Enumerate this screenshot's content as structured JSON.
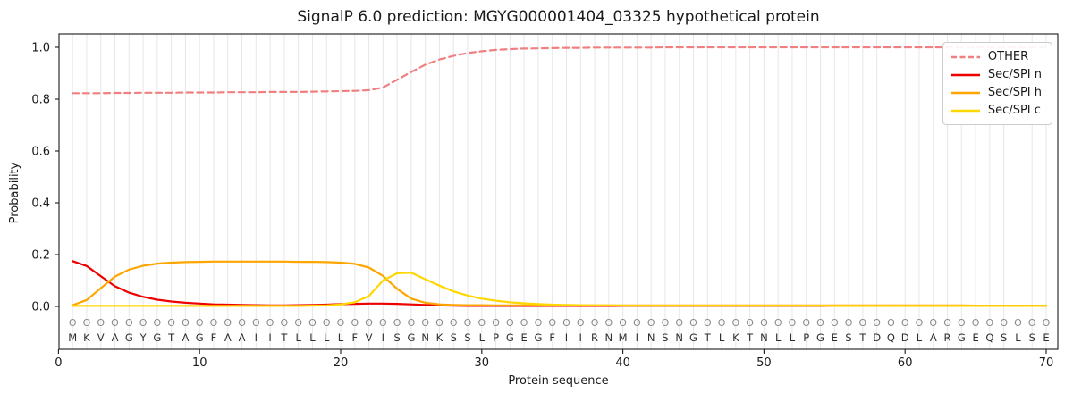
{
  "chart_data": {
    "type": "line",
    "title": "SignalP 6.0 prediction: MGYG000001404_03325 hypothetical protein",
    "xlabel": "Protein sequence",
    "ylabel": "Probability",
    "xlim": [
      0,
      71
    ],
    "ylim": [
      -0.17,
      1.05
    ],
    "xticks": [
      0,
      10,
      20,
      30,
      40,
      50,
      60,
      70
    ],
    "yticks": [
      0.0,
      0.2,
      0.4,
      0.6,
      0.8,
      1.0
    ],
    "grid": "vertical gridline at every residue position, light gray",
    "legend_position": "upper right",
    "sequence": "MKVAGYGTAGFAAIITLLLLFVISGNKSSLPGEGFIIRNMINSNGTLKTNLLPGESTDQDLARGEQSLSE",
    "residue_marker": "O",
    "residue_marker_color": "#8a8a8a",
    "residue_letter_color": "#2e2e2e",
    "grid_color": "#e7e7e7",
    "axis_color": "#1a1a1a",
    "series": [
      {
        "name": "OTHER",
        "color": "#f08080",
        "style": "dashed",
        "values": [
          0.823,
          0.823,
          0.823,
          0.824,
          0.824,
          0.825,
          0.825,
          0.825,
          0.826,
          0.826,
          0.826,
          0.827,
          0.827,
          0.827,
          0.828,
          0.828,
          0.828,
          0.829,
          0.83,
          0.831,
          0.832,
          0.835,
          0.845,
          0.875,
          0.905,
          0.933,
          0.953,
          0.967,
          0.978,
          0.985,
          0.99,
          0.993,
          0.995,
          0.996,
          0.997,
          0.998,
          0.998,
          0.999,
          0.999,
          0.999,
          0.999,
          0.999,
          1.0,
          1.0,
          1.0,
          1.0,
          1.0,
          1.0,
          1.0,
          1.0,
          1.0,
          1.0,
          1.0,
          1.0,
          1.0,
          1.0,
          1.0,
          1.0,
          1.0,
          1.0,
          1.0,
          1.0,
          1.0,
          1.0,
          1.0,
          1.0,
          1.0,
          1.0,
          1.0,
          1.0
        ]
      },
      {
        "name": "Sec/SPI n",
        "color": "#ee0000",
        "style": "solid",
        "values": [
          0.175,
          0.156,
          0.117,
          0.078,
          0.053,
          0.037,
          0.026,
          0.019,
          0.014,
          0.011,
          0.008,
          0.007,
          0.006,
          0.005,
          0.004,
          0.004,
          0.005,
          0.006,
          0.007,
          0.009,
          0.01,
          0.011,
          0.011,
          0.01,
          0.008,
          0.006,
          0.004,
          0.003,
          0.002,
          0.002,
          0.002,
          0.002,
          0.002,
          0.002,
          0.002,
          0.002,
          0.002,
          0.002,
          0.002,
          0.002,
          0.002,
          0.002,
          0.002,
          0.002,
          0.002,
          0.002,
          0.002,
          0.002,
          0.002,
          0.002,
          0.002,
          0.002,
          0.002,
          0.002,
          0.002,
          0.002,
          0.002,
          0.002,
          0.002,
          0.002,
          0.002,
          0.002,
          0.002,
          0.002,
          0.002,
          0.002,
          0.002,
          0.002,
          0.002,
          0.002
        ]
      },
      {
        "name": "Sec/SPI h",
        "color": "#ffa500",
        "style": "solid",
        "values": [
          0.005,
          0.025,
          0.07,
          0.115,
          0.142,
          0.157,
          0.165,
          0.169,
          0.171,
          0.172,
          0.173,
          0.173,
          0.173,
          0.173,
          0.173,
          0.173,
          0.172,
          0.172,
          0.171,
          0.169,
          0.164,
          0.15,
          0.118,
          0.068,
          0.03,
          0.014,
          0.008,
          0.006,
          0.005,
          0.005,
          0.004,
          0.004,
          0.004,
          0.004,
          0.004,
          0.004,
          0.004,
          0.004,
          0.004,
          0.004,
          0.004,
          0.004,
          0.004,
          0.004,
          0.004,
          0.004,
          0.004,
          0.004,
          0.004,
          0.004,
          0.004,
          0.004,
          0.004,
          0.004,
          0.004,
          0.004,
          0.004,
          0.004,
          0.004,
          0.004,
          0.004,
          0.004,
          0.004,
          0.004,
          0.003,
          0.003,
          0.003,
          0.003,
          0.003,
          0.003
        ]
      },
      {
        "name": "Sec/SPI c",
        "color": "#ffd700",
        "style": "solid",
        "values": [
          0.002,
          0.002,
          0.002,
          0.002,
          0.002,
          0.002,
          0.002,
          0.002,
          0.002,
          0.002,
          0.002,
          0.002,
          0.002,
          0.002,
          0.002,
          0.002,
          0.002,
          0.003,
          0.004,
          0.008,
          0.016,
          0.04,
          0.1,
          0.128,
          0.13,
          0.105,
          0.08,
          0.058,
          0.042,
          0.03,
          0.022,
          0.016,
          0.012,
          0.009,
          0.007,
          0.006,
          0.005,
          0.004,
          0.004,
          0.003,
          0.003,
          0.003,
          0.003,
          0.003,
          0.003,
          0.003,
          0.003,
          0.003,
          0.003,
          0.003,
          0.003,
          0.003,
          0.003,
          0.003,
          0.002,
          0.002,
          0.002,
          0.002,
          0.002,
          0.002,
          0.002,
          0.002,
          0.002,
          0.002,
          0.002,
          0.002,
          0.002,
          0.002,
          0.002,
          0.002
        ]
      }
    ]
  }
}
